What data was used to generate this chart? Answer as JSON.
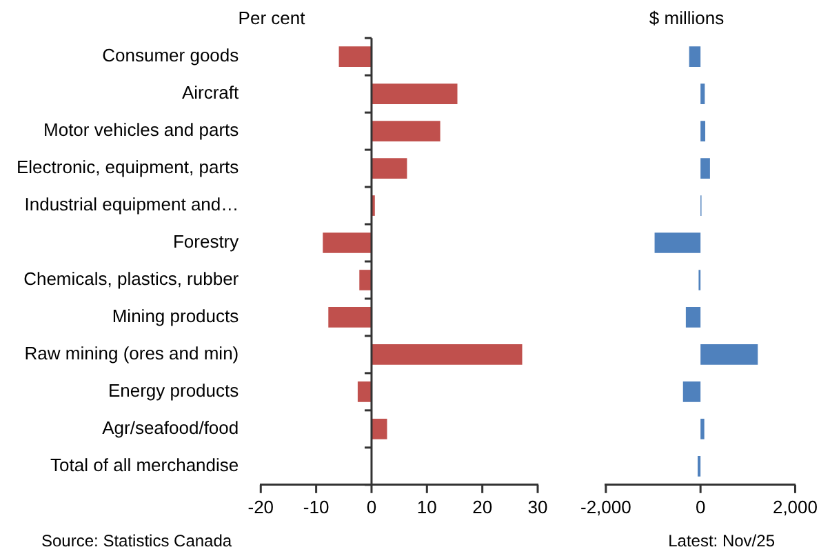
{
  "chart_data": [
    {
      "type": "bar",
      "orientation": "horizontal",
      "subtitle": "Per cent",
      "categories": [
        "Consumer goods",
        "Aircraft",
        "Motor vehicles and parts",
        "Electronic, equipment, parts",
        "Industrial equipment and…",
        "Forestry",
        "Chemicals, plastics, rubber",
        "Mining products",
        "Raw mining (ores and min)",
        "Energy products",
        "Agr/seafood/food",
        "Total of all merchandise"
      ],
      "series": [
        {
          "color": "#c0504d",
          "values": [
            -5.9,
            15.5,
            12.4,
            6.4,
            0.6,
            -8.8,
            -2.2,
            -7.8,
            27.2,
            -2.5,
            2.8,
            0
          ]
        }
      ],
      "xlim": [
        -20,
        30
      ],
      "xticks": [
        -20,
        -10,
        0,
        10,
        20,
        30
      ],
      "ref_lines": [
        {
          "axis": "x",
          "value": 0,
          "color": "#333333"
        }
      ],
      "grid": false,
      "legend": false,
      "annotations": [
        "Source: Statistics Canada"
      ]
    },
    {
      "type": "bar",
      "orientation": "horizontal",
      "subtitle": "$ millions",
      "categories": [
        null,
        null,
        null,
        null,
        null,
        null,
        null,
        null,
        null,
        null,
        null,
        null
      ],
      "series": [
        {
          "color": "#4f81bd",
          "values": [
            -240,
            90,
            100,
            200,
            20,
            -970,
            -40,
            -310,
            1210,
            -370,
            80,
            -60
          ]
        }
      ],
      "xlim": [
        -2000,
        2000
      ],
      "xticks": [
        {
          "value": -2000,
          "label": "-2,000"
        },
        0,
        {
          "value": 2000,
          "label": "2,000"
        }
      ],
      "grid": false,
      "legend": false,
      "tick_labels": "x",
      "annotations": [
        "Latest: Nov/25"
      ]
    }
  ]
}
